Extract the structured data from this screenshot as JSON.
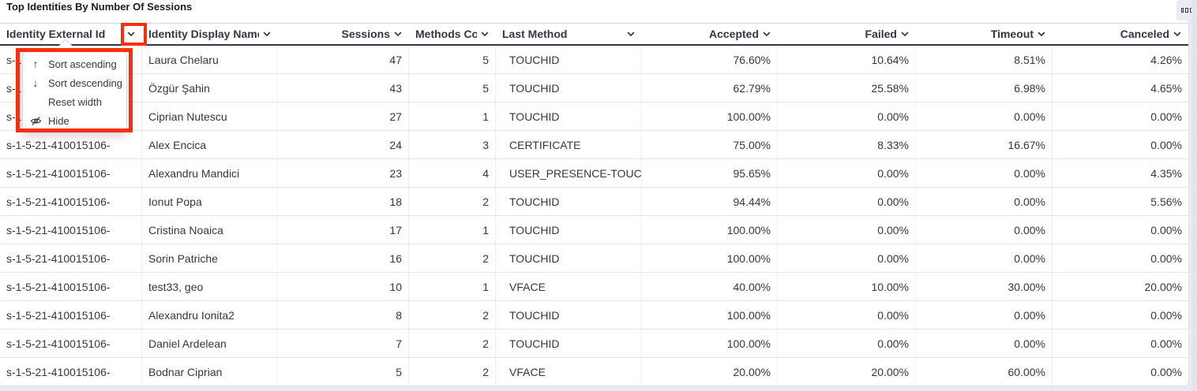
{
  "panel": {
    "title": "Top Identities By Number Of Sessions",
    "options_icon": "panel-options-squares-icon"
  },
  "annotation": {
    "color": "#fa2f0e"
  },
  "table": {
    "columns": [
      {
        "key": "externalId",
        "label": "Identity External Id",
        "align": "left",
        "width": 180
      },
      {
        "key": "displayName",
        "label": "Identity Display Name",
        "align": "left",
        "width": 172
      },
      {
        "key": "sessions",
        "label": "Sessions",
        "align": "right",
        "width": 166
      },
      {
        "key": "methodsCount",
        "label": "Methods Count",
        "align": "right",
        "width": 110
      },
      {
        "key": "lastMethod",
        "label": "Last Method",
        "align": "left",
        "width": 185
      },
      {
        "key": "accepted",
        "label": "Accepted",
        "align": "right",
        "width": 172
      },
      {
        "key": "failed",
        "label": "Failed",
        "align": "right",
        "width": 175
      },
      {
        "key": "timeout",
        "label": "Timeout",
        "align": "right",
        "width": 173
      },
      {
        "key": "canceled",
        "label": "Canceled",
        "align": "right",
        "width": 172
      }
    ],
    "rows": [
      {
        "externalId": "s-1-5-21-410015106-",
        "displayName": "Laura Chelaru",
        "sessions": "47",
        "methodsCount": "5",
        "lastMethod": "TOUCHID",
        "accepted": "76.60%",
        "failed": "10.64%",
        "timeout": "8.51%",
        "canceled": "4.26%"
      },
      {
        "externalId": "s-1-5-21-410015106-",
        "displayName": "Özgür Şahin",
        "sessions": "43",
        "methodsCount": "5",
        "lastMethod": "TOUCHID",
        "accepted": "62.79%",
        "failed": "25.58%",
        "timeout": "6.98%",
        "canceled": "4.65%"
      },
      {
        "externalId": "s-1-5-21-410015106-",
        "displayName": "Ciprian Nutescu",
        "sessions": "27",
        "methodsCount": "1",
        "lastMethod": "TOUCHID",
        "accepted": "100.00%",
        "failed": "0.00%",
        "timeout": "0.00%",
        "canceled": "0.00%"
      },
      {
        "externalId": "s-1-5-21-410015106-",
        "displayName": "Alex Encica",
        "sessions": "24",
        "methodsCount": "3",
        "lastMethod": "CERTIFICATE",
        "accepted": "75.00%",
        "failed": "8.33%",
        "timeout": "16.67%",
        "canceled": "0.00%"
      },
      {
        "externalId": "s-1-5-21-410015106-",
        "displayName": "Alexandru Mandici",
        "sessions": "23",
        "methodsCount": "4",
        "lastMethod": "USER_PRESENCE-TOUC",
        "accepted": "95.65%",
        "failed": "0.00%",
        "timeout": "0.00%",
        "canceled": "4.35%"
      },
      {
        "externalId": "s-1-5-21-410015106-",
        "displayName": "Ionut Popa",
        "sessions": "18",
        "methodsCount": "2",
        "lastMethod": "TOUCHID",
        "accepted": "94.44%",
        "failed": "0.00%",
        "timeout": "0.00%",
        "canceled": "5.56%"
      },
      {
        "externalId": "s-1-5-21-410015106-",
        "displayName": "Cristina Noaica",
        "sessions": "17",
        "methodsCount": "1",
        "lastMethod": "TOUCHID",
        "accepted": "100.00%",
        "failed": "0.00%",
        "timeout": "0.00%",
        "canceled": "0.00%"
      },
      {
        "externalId": "s-1-5-21-410015106-",
        "displayName": "Sorin Patriche",
        "sessions": "16",
        "methodsCount": "2",
        "lastMethod": "TOUCHID",
        "accepted": "100.00%",
        "failed": "0.00%",
        "timeout": "0.00%",
        "canceled": "0.00%"
      },
      {
        "externalId": "s-1-5-21-410015106-",
        "displayName": "test33, geo",
        "sessions": "10",
        "methodsCount": "1",
        "lastMethod": "VFACE",
        "accepted": "40.00%",
        "failed": "10.00%",
        "timeout": "30.00%",
        "canceled": "20.00%"
      },
      {
        "externalId": "s-1-5-21-410015106-",
        "displayName": "Alexandru Ionita2",
        "sessions": "8",
        "methodsCount": "2",
        "lastMethod": "TOUCHID",
        "accepted": "100.00%",
        "failed": "0.00%",
        "timeout": "0.00%",
        "canceled": "0.00%"
      },
      {
        "externalId": "s-1-5-21-410015106-",
        "displayName": "Daniel Ardelean",
        "sessions": "7",
        "methodsCount": "2",
        "lastMethod": "TOUCHID",
        "accepted": "100.00%",
        "failed": "0.00%",
        "timeout": "0.00%",
        "canceled": "0.00%"
      },
      {
        "externalId": "s-1-5-21-410015106-",
        "displayName": "Bodnar Ciprian",
        "sessions": "5",
        "methodsCount": "2",
        "lastMethod": "VFACE",
        "accepted": "20.00%",
        "failed": "20.00%",
        "timeout": "60.00%",
        "canceled": "0.00%"
      }
    ]
  },
  "column_menu": {
    "items": [
      {
        "icon": "sort-ascending-icon",
        "glyph": "arrow-up",
        "label": "Sort ascending"
      },
      {
        "icon": "sort-descending-icon",
        "glyph": "arrow-down",
        "label": "Sort descending"
      },
      {
        "icon": "",
        "glyph": "",
        "label": "Reset width"
      },
      {
        "icon": "eye-slash-icon",
        "glyph": "eye-slash",
        "label": "Hide"
      }
    ]
  }
}
